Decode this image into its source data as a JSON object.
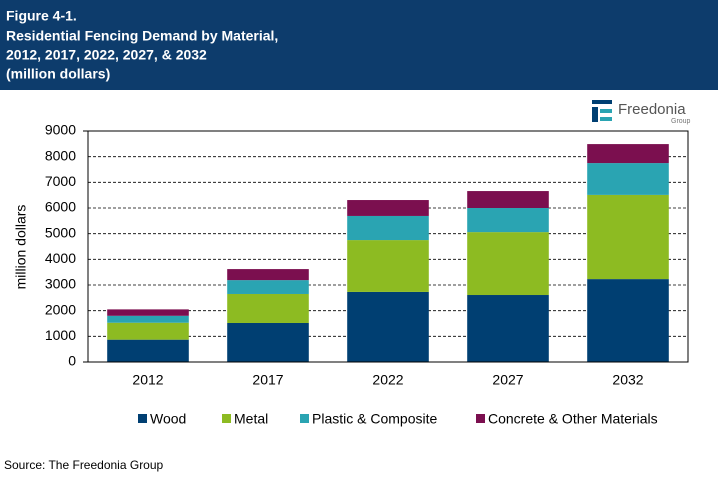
{
  "chart_data": {
    "type": "stacked-bar",
    "figure_label": "Figure 4-1.",
    "title_lines": [
      "Residential Fencing Demand by Material,",
      "2012, 2017, 2022, 2027, & 2032",
      "(million dollars)"
    ],
    "logo": {
      "name": "Freedonia",
      "sub": "Group"
    },
    "y_label": "million dollars",
    "categories": [
      "2012",
      "2017",
      "2022",
      "2027",
      "2032"
    ],
    "series": [
      {
        "name": "Wood",
        "color": "#003f72",
        "values": [
          870,
          1520,
          2730,
          2610,
          3230
        ]
      },
      {
        "name": "Metal",
        "color": "#8dbb22",
        "values": [
          660,
          1130,
          2020,
          2450,
          3280
        ]
      },
      {
        "name": "Plastic & Composite",
        "color": "#2aa4b2",
        "values": [
          270,
          540,
          940,
          940,
          1240
        ]
      },
      {
        "name": "Concrete & Other Materials",
        "color": "#7b0f4f",
        "values": [
          250,
          430,
          620,
          660,
          740
        ]
      }
    ],
    "ylim": [
      0,
      9000
    ],
    "yticks": [
      0,
      1000,
      2000,
      3000,
      4000,
      5000,
      6000,
      7000,
      8000,
      9000
    ],
    "grid": true,
    "source": "Source: The Freedonia Group"
  }
}
